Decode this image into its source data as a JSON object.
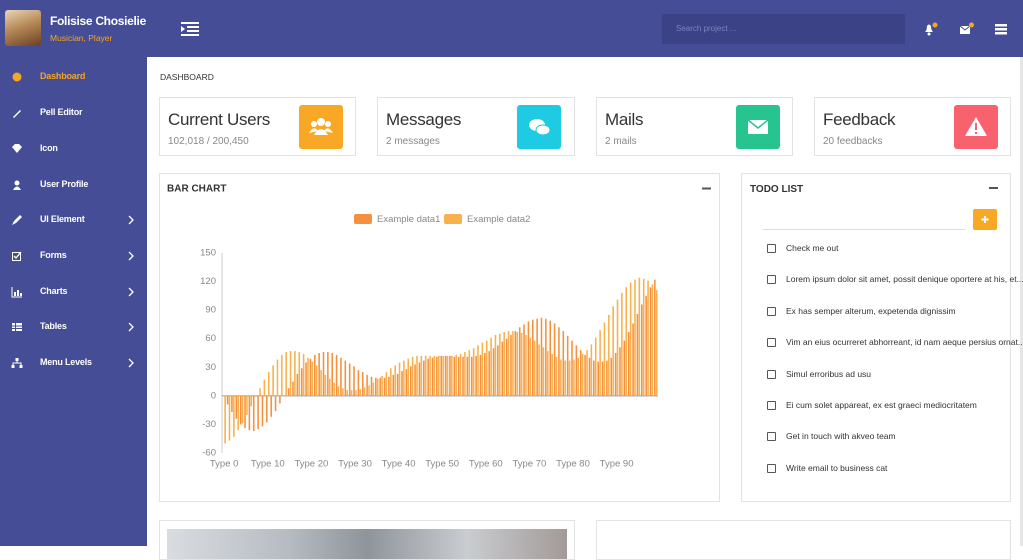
{
  "profile": {
    "name": "Folisise Chosielie",
    "role": "Musician, Player"
  },
  "search_placeholder": "Search project ...",
  "menu": [
    "Dashboard",
    "Pell Editor",
    "Icon",
    "User Profile",
    "UI Element",
    "Forms",
    "Charts",
    "Tables",
    "Menu Levels"
  ],
  "breadcrumb": "DASHBOARD",
  "stats": [
    {
      "title": "Current Users",
      "sub": "102,018 / 200,450"
    },
    {
      "title": "Messages",
      "sub": "2 messages"
    },
    {
      "title": "Mails",
      "sub": "2 mails"
    },
    {
      "title": "Feedback",
      "sub": "20 feedbacks"
    }
  ],
  "chart_data": {
    "type": "bar",
    "title": "BAR CHART",
    "categories": [
      "Type 0",
      null,
      null,
      null,
      null,
      null,
      null,
      null,
      null,
      null,
      "Type 10",
      null,
      null,
      null,
      null,
      null,
      null,
      null,
      null,
      null,
      "Type 20",
      null,
      null,
      null,
      null,
      null,
      null,
      null,
      null,
      null,
      "Type 30",
      null,
      null,
      null,
      null,
      null,
      null,
      null,
      null,
      null,
      "Type 40",
      null,
      null,
      null,
      null,
      null,
      null,
      null,
      null,
      null,
      "Type 50",
      null,
      null,
      null,
      null,
      null,
      null,
      null,
      null,
      null,
      "Type 60",
      null,
      null,
      null,
      null,
      null,
      null,
      null,
      null,
      null,
      "Type 70",
      null,
      null,
      null,
      null,
      null,
      null,
      null,
      null,
      null,
      "Type 80",
      null,
      null,
      null,
      null,
      null,
      null,
      null,
      null,
      null,
      "Type 90",
      null,
      null,
      null,
      null,
      null,
      null,
      null,
      null,
      null
    ],
    "series": [
      {
        "name": "Example data1",
        "color": "#f5913e",
        "values": [
          0,
          -9,
          -17,
          -24,
          -30,
          -34,
          -36,
          -37,
          -35,
          -32,
          -28,
          -22,
          -16,
          -8,
          0,
          8,
          15,
          23,
          29,
          35,
          39,
          43,
          45,
          46,
          46,
          45,
          43,
          40,
          37,
          34,
          31,
          27,
          25,
          22,
          20,
          19,
          19,
          19,
          20,
          22,
          23,
          26,
          28,
          31,
          33,
          35,
          37,
          39,
          40,
          41,
          42,
          42,
          42,
          41,
          41,
          41,
          41,
          41,
          42,
          43,
          45,
          47,
          50,
          53,
          57,
          60,
          64,
          68,
          72,
          75,
          78,
          80,
          81,
          82,
          81,
          79,
          76,
          72,
          68,
          63,
          58,
          53,
          48,
          43,
          40,
          37,
          36,
          36,
          37,
          40,
          45,
          51,
          58,
          67,
          76,
          86,
          96,
          105,
          114,
          122
        ]
      },
      {
        "name": "Example data2",
        "color": "#f8b14c",
        "values": [
          -50,
          -47,
          -43,
          -36,
          -29,
          -20,
          -11,
          -1,
          8,
          17,
          25,
          32,
          38,
          43,
          46,
          47,
          47,
          46,
          44,
          40,
          36,
          32,
          27,
          22,
          18,
          14,
          10,
          8,
          6,
          6,
          6,
          7,
          9,
          11,
          14,
          18,
          21,
          25,
          29,
          32,
          35,
          37,
          39,
          41,
          42,
          42,
          42,
          42,
          42,
          42,
          42,
          42,
          42,
          43,
          44,
          46,
          48,
          50,
          53,
          56,
          58,
          61,
          64,
          65,
          67,
          68,
          68,
          67,
          66,
          64,
          61,
          58,
          54,
          51,
          47,
          44,
          41,
          38,
          37,
          37,
          38,
          40,
          44,
          48,
          54,
          61,
          69,
          77,
          85,
          94,
          101,
          108,
          114,
          119,
          122,
          124,
          123,
          121,
          117,
          111
        ]
      }
    ],
    "ylim": [
      -60,
      150
    ],
    "yticks": [
      -60,
      -30,
      0,
      30,
      60,
      90,
      120,
      150
    ],
    "grid": false
  },
  "todo": {
    "title": "TODO LIST",
    "items": [
      "Check me out",
      "Lorem ipsum dolor sit amet, possit denique oportere at his, et...",
      "Ex has semper alterum, expetenda dignissim",
      "Vim an eius ocurreret abhorreant, id nam aeque persius ornat...",
      "Simul erroribus ad usu",
      "Ei cum solet appareat, ex est graeci mediocritatem",
      "Get in touch with akveo team",
      "Write email to business cat"
    ]
  }
}
